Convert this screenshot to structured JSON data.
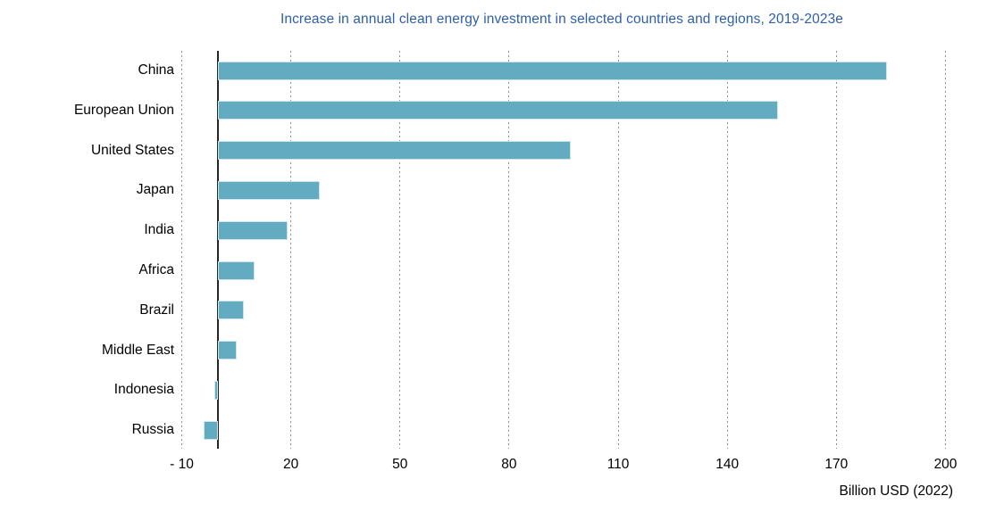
{
  "page": {
    "background": "#ffffff"
  },
  "chart_data": {
    "type": "bar",
    "orientation": "horizontal",
    "title": "Increase in annual clean energy investment in selected countries and regions, 2019-2023e",
    "xlabel": "Billion USD (2022)",
    "ylabel": "",
    "categories": [
      "China",
      "European Union",
      "United States",
      "Japan",
      "India",
      "Africa",
      "Brazil",
      "Middle East",
      "Indonesia",
      "Russia"
    ],
    "values": [
      184,
      154,
      97,
      28,
      19,
      10,
      7,
      5,
      -1,
      -4
    ],
    "xlim": [
      -10,
      200
    ],
    "xticks": [
      -10,
      20,
      50,
      80,
      110,
      140,
      170,
      200
    ],
    "xtick_labels": [
      "- 10",
      "20",
      "50",
      "80",
      "110",
      "140",
      "170",
      "200"
    ],
    "grid": "vertical dotted gridlines at each x tick",
    "legend": "none",
    "colors": {
      "bar_fill": "#62abc0",
      "bar_border": "#cfe5ec",
      "title_text": "#2e5fa8",
      "axis_text": "#000000",
      "gridline": "#8c8c8c",
      "zero_axis_line": "#262626"
    }
  }
}
